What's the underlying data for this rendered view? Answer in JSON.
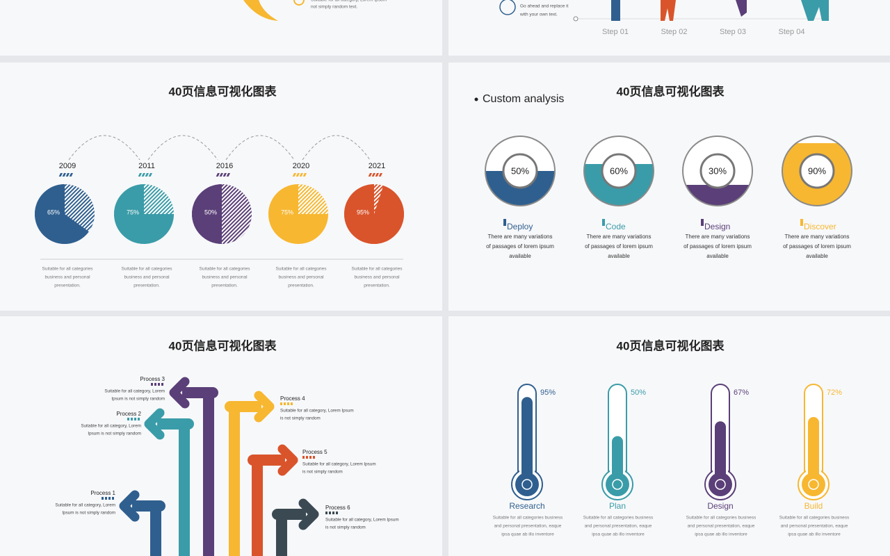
{
  "top_left": {
    "lines": [
      "Suitable for all category, Lorem Ipsum",
      "not simply random text."
    ]
  },
  "top_right": {
    "lines": [
      "Go ahead and replace it",
      "with your own text."
    ],
    "steps": [
      "Step 01",
      "Step 02",
      "Step 03",
      "Step 04"
    ]
  },
  "pie_slide": {
    "title": "40页信息可视化图表",
    "items": [
      {
        "year": "2009",
        "value": 65,
        "label": "65%",
        "lines": [
          "Suitable for all categories",
          "business and personal",
          "presentation."
        ]
      },
      {
        "year": "2011",
        "value": 75,
        "label": "75%",
        "lines": [
          "Suitable for all categories",
          "business and personal",
          "presentation."
        ]
      },
      {
        "year": "2016",
        "value": 50,
        "label": "50%",
        "lines": [
          "Suitable for all categories",
          "business and personal",
          "presentation."
        ]
      },
      {
        "year": "2020",
        "value": 75,
        "label": "75%",
        "lines": [
          "Suitable for all categories",
          "business and personal",
          "presentation."
        ]
      },
      {
        "year": "2021",
        "value": 95,
        "label": "95%",
        "lines": [
          "Suitable for all categories",
          "business and personal",
          "presentation."
        ]
      }
    ]
  },
  "donut_slide": {
    "title": "40页信息可视化图表",
    "bullet": "Custom analysis",
    "items": [
      {
        "name": "Deploy",
        "value": 50,
        "label": "50%",
        "lines": [
          "There are many variations",
          "of passages of lorem ipsum",
          "available"
        ]
      },
      {
        "name": "Code",
        "value": 60,
        "label": "60%",
        "lines": [
          "There are many variations",
          "of passages of lorem ipsum",
          "available"
        ]
      },
      {
        "name": "Design",
        "value": 30,
        "label": "30%",
        "lines": [
          "There are many variations",
          "of passages of lorem ipsum",
          "available"
        ]
      },
      {
        "name": "Discover",
        "value": 90,
        "label": "90%",
        "lines": [
          "There are many variations",
          "of passages of lorem ipsum",
          "available"
        ]
      }
    ]
  },
  "arrow_slide": {
    "title": "40页信息可视化图表",
    "processes": [
      {
        "name": "Process 1",
        "lines": [
          "Suitable for all category, Lorem",
          "Ipsum is not simply random"
        ]
      },
      {
        "name": "Process 2",
        "lines": [
          "Suitable for all category, Lorem",
          "Ipsum is not simply random"
        ]
      },
      {
        "name": "Process 3",
        "lines": [
          "Suitable for all category, Lorem",
          "Ipsum is not simply random"
        ]
      },
      {
        "name": "Process 4",
        "lines": [
          "Suitable for all category, Lorem Ipsum",
          "is not simply random"
        ]
      },
      {
        "name": "Process 5",
        "lines": [
          "Suitable for all category, Lorem Ipsum",
          "is not simply random"
        ]
      },
      {
        "name": "Process 6",
        "lines": [
          "Suitable for all category, Lorem Ipsum",
          "is not simply random"
        ]
      }
    ]
  },
  "thermo_slide": {
    "title": "40页信息可视化图表",
    "items": [
      {
        "name": "Research",
        "value": 95,
        "label": "95%",
        "lines": [
          "Suitable for all categories  business",
          "and personal presentation, eaque",
          "ipsa quae ab illo inventore"
        ]
      },
      {
        "name": "Plan",
        "value": 50,
        "label": "50%",
        "lines": [
          "Suitable for all categories  business",
          "and personal presentation, eaque",
          "ipsa quae ab illo inventore"
        ]
      },
      {
        "name": "Design",
        "value": 67,
        "label": "67%",
        "lines": [
          "Suitable for all categories  business",
          "and personal presentation, eaque",
          "ipsa quae ab illo inventore"
        ]
      },
      {
        "name": "Build",
        "value": 72,
        "label": "72%",
        "lines": [
          "Suitable for all categories  business",
          "and personal presentation, eaque",
          "ipsa quae ab illo inventore"
        ]
      }
    ]
  }
}
